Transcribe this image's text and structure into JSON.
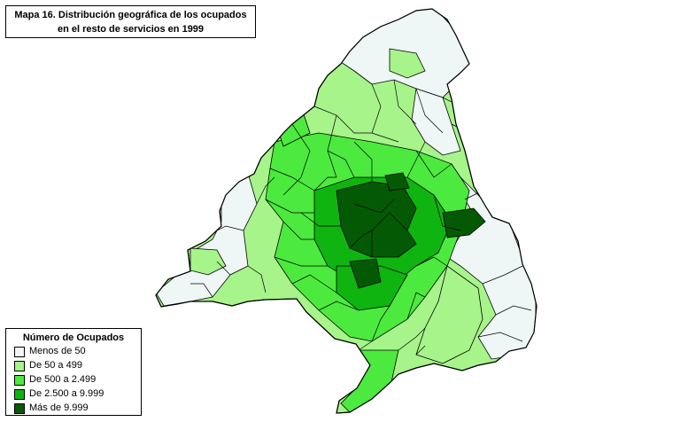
{
  "title": {
    "line1": "Mapa 16. Distribución geográfica de los ocupados",
    "line2": "en el resto de servicios en 1999"
  },
  "legend": {
    "title": "Número de Ocupados",
    "items": [
      {
        "label": "Menos de 50",
        "color": "#eef6f6"
      },
      {
        "label": "De 50 a 499",
        "color": "#a6f48a"
      },
      {
        "label": "De 500 a 2.499",
        "color": "#4cea3e"
      },
      {
        "label": "De 2.500 a 9.999",
        "color": "#10b410"
      },
      {
        "label": "Más de 9.999",
        "color": "#045a04"
      }
    ]
  }
}
